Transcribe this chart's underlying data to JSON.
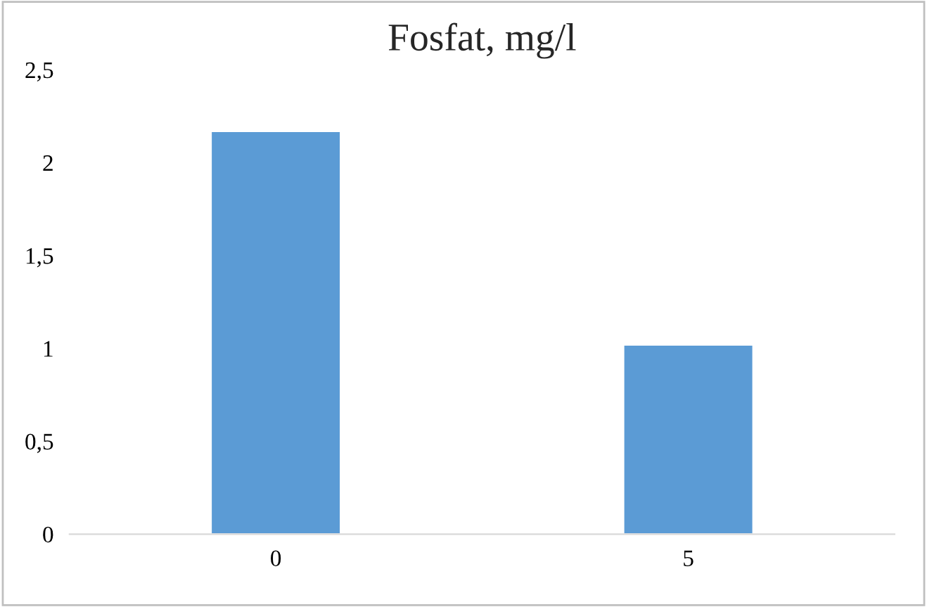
{
  "chart_data": {
    "type": "bar",
    "title": "Fosfat, mg/l",
    "categories": [
      "0",
      "5"
    ],
    "values": [
      2.17,
      1.02
    ],
    "color": "#5b9bd5",
    "ylim": [
      0,
      2.5
    ],
    "yticks": [
      {
        "value": 0,
        "label": "0"
      },
      {
        "value": 0.5,
        "label": "0,5"
      },
      {
        "value": 1,
        "label": "1"
      },
      {
        "value": 1.5,
        "label": "1,5"
      },
      {
        "value": 2,
        "label": "2"
      },
      {
        "value": 2.5,
        "label": "2,5"
      }
    ],
    "grid": false,
    "legend": false
  }
}
